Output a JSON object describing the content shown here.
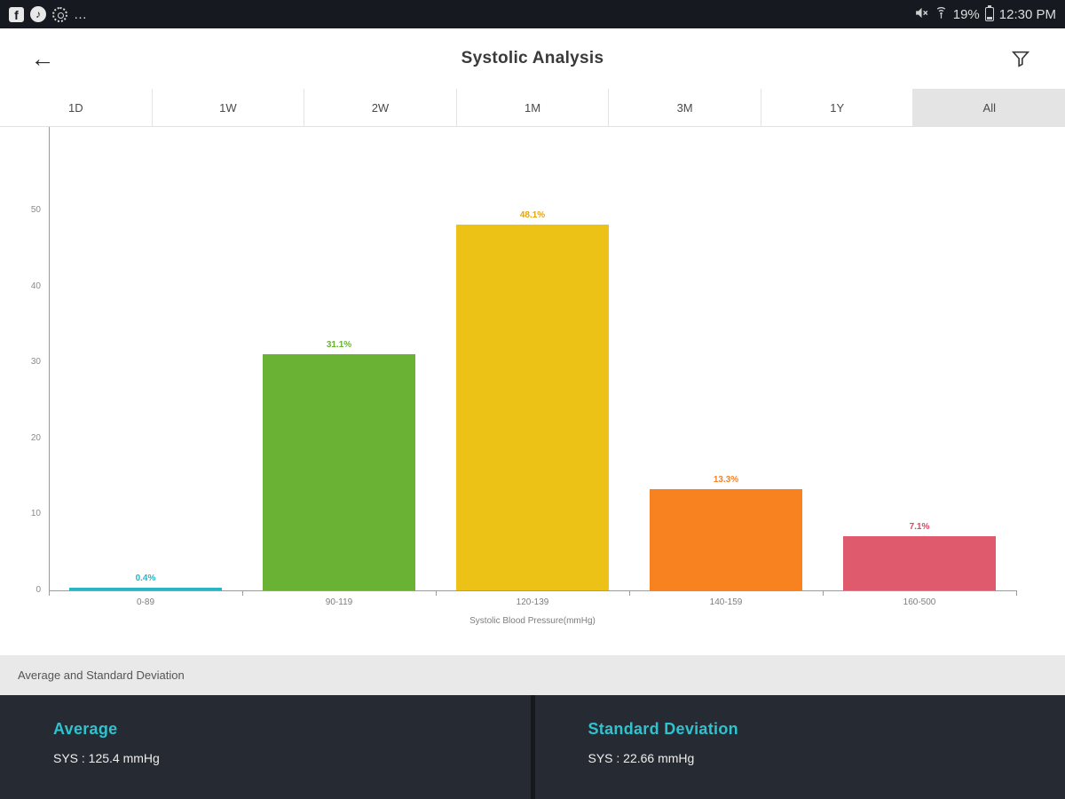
{
  "status_bar": {
    "time": "12:30 PM",
    "battery_percent": "19%",
    "facebook_glyph": "f",
    "music_glyph": "♪",
    "more_dots": "…"
  },
  "header": {
    "title": "Systolic Analysis"
  },
  "tabs": [
    {
      "label": "1D",
      "selected": false
    },
    {
      "label": "1W",
      "selected": false
    },
    {
      "label": "2W",
      "selected": false
    },
    {
      "label": "1M",
      "selected": false
    },
    {
      "label": "3M",
      "selected": false
    },
    {
      "label": "1Y",
      "selected": false
    },
    {
      "label": "All",
      "selected": true
    }
  ],
  "chart_data": {
    "type": "bar",
    "title": "",
    "categories": [
      "0-89",
      "90-119",
      "120-139",
      "140-159",
      "160-500"
    ],
    "values": [
      0.4,
      31.1,
      48.1,
      13.3,
      7.1
    ],
    "value_labels": [
      "0.4%",
      "31.1%",
      "48.1%",
      "13.3%",
      "7.1%"
    ],
    "bar_colors": [
      "#2bb5c4",
      "#6ab233",
      "#ecc216",
      "#f8821f",
      "#e05a6e"
    ],
    "label_colors": [
      "#2bb5c4",
      "#6ab233",
      "#e8a50a",
      "#f8821f",
      "#e0485e"
    ],
    "xlabel": "Systolic Blood Pressure(mmHg)",
    "ylabel": "",
    "yticks": [
      0,
      10,
      20,
      30,
      40,
      50
    ],
    "ylim": [
      0,
      50
    ],
    "grid": false,
    "legend": "none"
  },
  "section_bar": {
    "label": "Average and Standard Deviation"
  },
  "stats": {
    "average": {
      "title": "Average",
      "value": "SYS : 125.4 mmHg"
    },
    "std_dev": {
      "title": "Standard Deviation",
      "value": "SYS : 22.66 mmHg"
    }
  },
  "colors": {
    "accent_teal": "#2fc2cf",
    "panel_dark": "#262b33",
    "statusbar_dark": "#16191f",
    "tab_selected_bg": "#e4e4e4"
  }
}
